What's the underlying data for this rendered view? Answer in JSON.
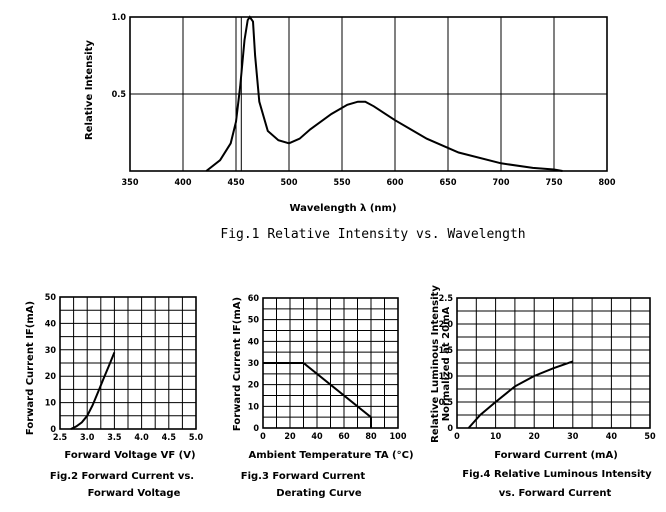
{
  "chart_data": [
    {
      "type": "line",
      "caption": "Fig.1   Relative Intensity vs. Wavelength",
      "xlabel": "Wavelength λ (nm)",
      "ylabel": "Relative Intensity",
      "xlim": [
        350,
        800
      ],
      "ylim": [
        0,
        1.0
      ],
      "x_ticks": [
        "350",
        "400",
        "450",
        "500",
        "550",
        "600",
        "650",
        "700",
        "750",
        "800"
      ],
      "y_ticks": [
        "0.5",
        "1.0"
      ],
      "grid": true,
      "series": [
        {
          "x": [
            422,
            435,
            445,
            450,
            454,
            458,
            461,
            463,
            466,
            468,
            472,
            480,
            490,
            500,
            510,
            520,
            540,
            555,
            565,
            572,
            580,
            600,
            630,
            660,
            700,
            730,
            750,
            758
          ],
          "y": [
            0.0,
            0.07,
            0.18,
            0.32,
            0.55,
            0.85,
            0.98,
            1.0,
            0.97,
            0.75,
            0.45,
            0.26,
            0.2,
            0.18,
            0.21,
            0.27,
            0.37,
            0.43,
            0.45,
            0.45,
            0.42,
            0.33,
            0.21,
            0.12,
            0.05,
            0.02,
            0.01,
            0.0
          ]
        }
      ]
    },
    {
      "type": "line",
      "caption_lines": [
        "Fig.2 Forward Current vs.",
        "Forward Voltage"
      ],
      "xlabel": "Forward Voltage VF (V)",
      "ylabel": "Forward Current IF(mA)",
      "xlim": [
        2.5,
        5.0
      ],
      "ylim": [
        0,
        50
      ],
      "x_ticks": [
        "2.5",
        "3.0",
        "3.5",
        "4.0",
        "4.5",
        "5.0"
      ],
      "y_ticks": [
        "0",
        "10",
        "20",
        "30",
        "40",
        "50"
      ],
      "grid": true,
      "series": [
        {
          "x": [
            2.7,
            2.8,
            2.9,
            3.0,
            3.1,
            3.2,
            3.3,
            3.4,
            3.5
          ],
          "y": [
            0,
            1,
            2.5,
            5,
            9,
            14,
            19,
            24,
            29
          ]
        }
      ]
    },
    {
      "type": "line",
      "caption_lines": [
        "Fig.3 Forward Current",
        "Derating Curve"
      ],
      "xlabel": "Ambient Temperature TA (°C)",
      "ylabel": "Forward Current IF(mA)",
      "xlim": [
        0,
        100
      ],
      "ylim": [
        0,
        60
      ],
      "x_ticks": [
        "0",
        "20",
        "40",
        "60",
        "80",
        "100"
      ],
      "y_ticks": [
        "0",
        "10",
        "20",
        "30",
        "40",
        "50",
        "60"
      ],
      "grid": true,
      "series": [
        {
          "x": [
            0,
            30,
            80,
            80
          ],
          "y": [
            30,
            30,
            5,
            0
          ]
        }
      ]
    },
    {
      "type": "line",
      "caption_lines": [
        "Fig.4 Relative Luminous Intensity",
        "vs. Forward Current"
      ],
      "xlabel": "Forward Current (mA)",
      "ylabel_lines": [
        "Relative Luminous Intensity",
        "Normalized at 20mA"
      ],
      "xlim": [
        0,
        50
      ],
      "ylim": [
        0,
        2.5
      ],
      "x_ticks": [
        "0",
        "10",
        "20",
        "30",
        "40",
        "50"
      ],
      "y_ticks": [
        "0",
        "0.5",
        "1.0",
        "1.5",
        "2.0",
        "2.5"
      ],
      "grid": true,
      "series": [
        {
          "x": [
            3,
            6,
            10,
            15,
            20,
            25,
            30
          ],
          "y": [
            0,
            0.25,
            0.5,
            0.8,
            1.0,
            1.15,
            1.28
          ]
        }
      ]
    }
  ]
}
